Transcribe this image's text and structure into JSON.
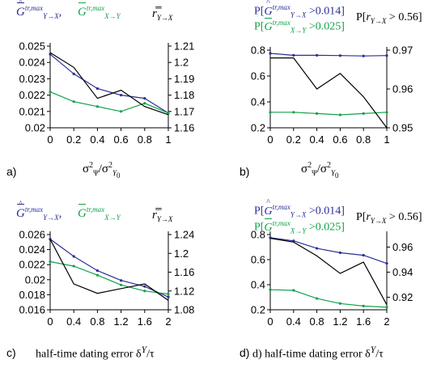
{
  "panels": [
    {
      "panel_label": "a)",
      "legend": {
        "blue": "G̅̂ tr,max Y→X",
        "green": "G̅ tr,max X→Y",
        "black": "r̅̅ Y→X"
      },
      "x_title": "σ²Ψ/σ²Y0"
    },
    {
      "panel_label": "b)",
      "legend": {
        "blue": "P[Ĝ tr,max Y→X >0.014]",
        "green": "P[G tr,max X→Y >0.025]",
        "black": "P[r Y→X > 0.56]"
      },
      "x_title": "σ²Ψ/σ²Y0"
    },
    {
      "panel_label": "c)",
      "legend": {
        "blue": "G̅̂ tr,max Y→X",
        "green": "G̅ tr,max X→Y",
        "black": "r̅̅ Y→X"
      },
      "x_title": "half-time dating error δY/τ"
    },
    {
      "panel_label": "d)",
      "legend": {
        "blue": "P[Ĝ tr,max Y→X >0.014]",
        "green": "P[G tr,max X→Y >0.025]",
        "black": "P[r Y→X > 0.56]"
      },
      "x_title": "half-time dating error δY/τ"
    }
  ],
  "colors": {
    "blue": "#2b2f95",
    "green": "#12a24b",
    "black": "#000000"
  },
  "chart_data": [
    {
      "id": "a",
      "type": "line",
      "x": [
        0,
        0.2,
        0.4,
        0.6,
        0.8,
        1
      ],
      "x_ticks": [
        "0",
        "0.2",
        "0.4",
        "0.6",
        "0.8",
        "1"
      ],
      "xlim": [
        0,
        1
      ],
      "left_axis": {
        "ylim": [
          0.02,
          0.025
        ],
        "ticks": [
          0.02,
          0.021,
          0.022,
          0.023,
          0.024,
          0.025
        ],
        "tick_labels": [
          "0.02",
          "0.021",
          "0.022",
          "0.023",
          "0.024",
          "0.025"
        ]
      },
      "right_axis": {
        "ylim": [
          1.16,
          1.21
        ],
        "ticks": [
          1.16,
          1.17,
          1.18,
          1.19,
          1.2,
          1.21
        ],
        "tick_labels": [
          "1.16",
          "1.17",
          "1.18",
          "1.19",
          "1.2",
          "1.21"
        ]
      },
      "series": [
        {
          "color": "blue",
          "axis": "left",
          "markers": true,
          "values": [
            0.0245,
            0.0233,
            0.0224,
            0.022,
            0.0218,
            0.0209
          ]
        },
        {
          "color": "green",
          "axis": "left",
          "markers": true,
          "values": [
            0.0222,
            0.0216,
            0.0213,
            0.021,
            0.0215,
            0.0209
          ]
        },
        {
          "color": "black",
          "axis": "right",
          "markers": false,
          "values": [
            1.206,
            1.197,
            1.178,
            1.183,
            1.173,
            1.168
          ]
        }
      ]
    },
    {
      "id": "b",
      "type": "line",
      "x": [
        0,
        0.2,
        0.4,
        0.6,
        0.8,
        1
      ],
      "x_ticks": [
        "0",
        "0.2",
        "0.4",
        "0.6",
        "0.8",
        "1"
      ],
      "xlim": [
        0,
        1
      ],
      "left_axis": {
        "ylim": [
          0.2,
          0.8
        ],
        "ticks": [
          0.2,
          0.4,
          0.6,
          0.8
        ],
        "tick_labels": [
          "0.2",
          "0.4",
          "0.6",
          "0.8"
        ]
      },
      "right_axis": {
        "ylim": [
          0.95,
          0.97
        ],
        "ticks": [
          0.95,
          0.96,
          0.97
        ],
        "tick_labels": [
          "0.95",
          "0.96",
          "0.97"
        ]
      },
      "series": [
        {
          "color": "blue",
          "axis": "left",
          "markers": true,
          "values": [
            0.775,
            0.76,
            0.76,
            0.758,
            0.755,
            0.758
          ]
        },
        {
          "color": "green",
          "axis": "left",
          "markers": true,
          "values": [
            0.32,
            0.32,
            0.31,
            0.3,
            0.31,
            0.32
          ]
        },
        {
          "color": "black",
          "axis": "right",
          "markers": false,
          "values": [
            0.968,
            0.968,
            0.96,
            0.964,
            0.958,
            0.95
          ]
        }
      ]
    },
    {
      "id": "c",
      "type": "line",
      "x": [
        0,
        0.4,
        0.8,
        1.2,
        1.6,
        2
      ],
      "x_ticks": [
        "0",
        "0.4",
        "0.8",
        "1.2",
        "1.6",
        "2"
      ],
      "xlim": [
        0,
        2
      ],
      "left_axis": {
        "ylim": [
          0.016,
          0.026
        ],
        "ticks": [
          0.016,
          0.018,
          0.02,
          0.022,
          0.024,
          0.026
        ],
        "tick_labels": [
          "0.016",
          "0.018",
          "0.02",
          "0.022",
          "0.024",
          "0.026"
        ]
      },
      "right_axis": {
        "ylim": [
          1.08,
          1.24
        ],
        "ticks": [
          1.08,
          1.12,
          1.16,
          1.2,
          1.24
        ],
        "tick_labels": [
          "1.08",
          "1.12",
          "1.16",
          "1.2",
          "1.24"
        ]
      },
      "series": [
        {
          "color": "blue",
          "axis": "left",
          "markers": true,
          "values": [
            0.0254,
            0.0231,
            0.0212,
            0.0199,
            0.0191,
            0.0177
          ]
        },
        {
          "color": "green",
          "axis": "left",
          "markers": true,
          "values": [
            0.0224,
            0.0218,
            0.0206,
            0.0193,
            0.0185,
            0.0181
          ]
        },
        {
          "color": "black",
          "axis": "right",
          "markers": false,
          "values": [
            1.23,
            1.135,
            1.115,
            1.125,
            1.135,
            1.1
          ]
        }
      ]
    },
    {
      "id": "d",
      "type": "line",
      "x": [
        0,
        0.4,
        0.8,
        1.2,
        1.6,
        2
      ],
      "x_ticks": [
        "0",
        "0.4",
        "0.8",
        "1.2",
        "1.6",
        "2"
      ],
      "xlim": [
        0,
        2
      ],
      "left_axis": {
        "ylim": [
          0.2,
          0.8
        ],
        "ticks": [
          0.2,
          0.4,
          0.6,
          0.8
        ],
        "tick_labels": [
          "0.2",
          "0.4",
          "0.6",
          "0.8"
        ]
      },
      "right_axis": {
        "ylim": [
          0.91,
          0.97
        ],
        "ticks": [
          0.92,
          0.94,
          0.96
        ],
        "tick_labels": [
          "0.92",
          "0.94",
          "0.96"
        ]
      },
      "series": [
        {
          "color": "blue",
          "axis": "left",
          "markers": true,
          "values": [
            0.775,
            0.75,
            0.69,
            0.655,
            0.635,
            0.57
          ]
        },
        {
          "color": "green",
          "axis": "left",
          "markers": true,
          "values": [
            0.36,
            0.355,
            0.29,
            0.25,
            0.23,
            0.22
          ]
        },
        {
          "color": "black",
          "axis": "right",
          "markers": false,
          "values": [
            0.967,
            0.964,
            0.953,
            0.939,
            0.948,
            0.914
          ]
        }
      ]
    }
  ]
}
